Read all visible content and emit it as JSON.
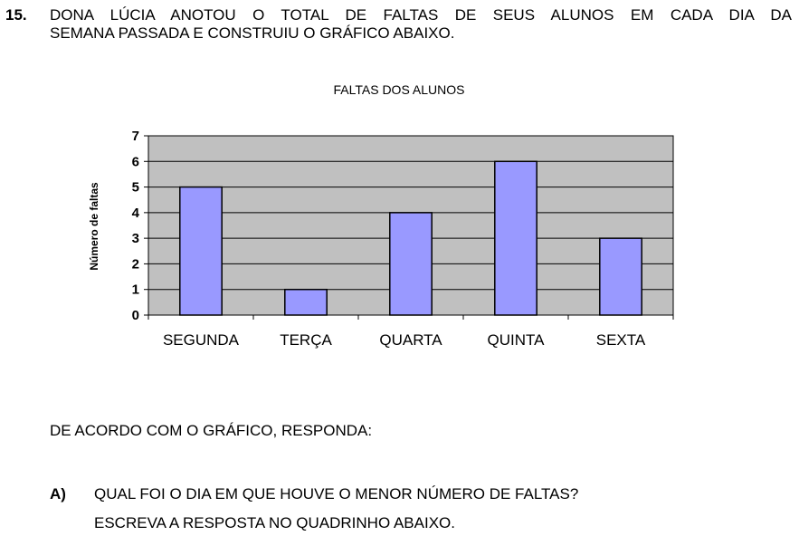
{
  "question": {
    "number": "15.",
    "line1": "DONA LÚCIA ANOTOU O TOTAL DE FALTAS DE SEUS ALUNOS EM CADA DIA DA",
    "line2": "SEMANA PASSADA E CONSTRUIU O GRÁFICO ABAIXO."
  },
  "chart_data": {
    "type": "bar",
    "title": "FALTAS DOS ALUNOS",
    "xlabel": "",
    "ylabel": "Número de faltas",
    "categories": [
      "SEGUNDA",
      "TERÇA",
      "QUARTA",
      "QUINTA",
      "SEXTA"
    ],
    "values": [
      5,
      1,
      4,
      6,
      3
    ],
    "ylim": [
      0,
      7
    ],
    "yticks": [
      0,
      1,
      2,
      3,
      4,
      5,
      6,
      7
    ],
    "grid": true,
    "legend": "none",
    "bar_color": "#9999ff",
    "plot_background": "#c0c0c0"
  },
  "instruction": "DE ACORDO COM O GRÁFICO, RESPONDA:",
  "item_a": {
    "label": "A)",
    "line1": "QUAL FOI O DIA EM QUE HOUVE O MENOR NÚMERO DE FALTAS?",
    "line2": "ESCREVA A RESPOSTA NO QUADRINHO ABAIXO."
  }
}
